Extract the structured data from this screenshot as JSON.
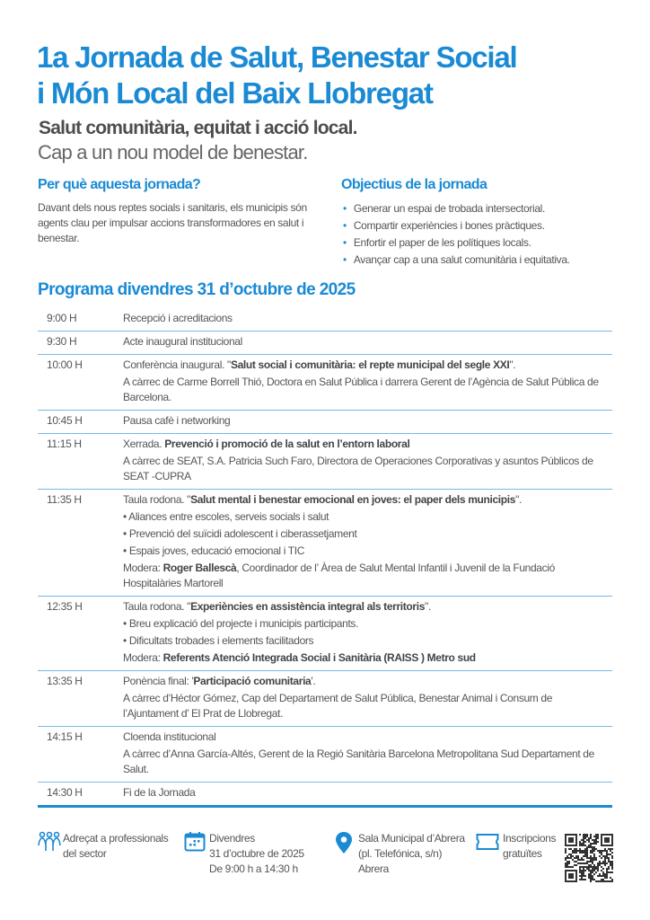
{
  "header": {
    "title_line1": "1a Jornada de Salut, Benestar Social",
    "title_line2": "i Món Local del Baix Llobregat",
    "subtitle": "Salut comunitària, equitat i acció local.",
    "tagline": "Cap a un nou model de benestar."
  },
  "why": {
    "heading": "Per què aquesta jornada?",
    "text": "Davant dels nous reptes socials i sanitaris, els municipis són agents clau per impulsar accions transformadores en salut i benestar."
  },
  "objectives": {
    "heading": "Objectius de la jornada",
    "items": [
      "Generar un espai de trobada intersectorial.",
      "Compartir experiències i bones pràctiques.",
      "Enfortir el paper de les polítiques locals.",
      "Avançar cap a una salut comunitària i equitativa."
    ]
  },
  "program": {
    "heading": "Programa divendres 31 d’octubre de 2025",
    "rows": [
      {
        "time": "9:00 H",
        "lines": [
          [
            {
              "t": "Recepció i acreditacions"
            }
          ]
        ]
      },
      {
        "time": "9:30 H",
        "lines": [
          [
            {
              "t": "Acte inaugural institucional"
            }
          ]
        ]
      },
      {
        "time": "10:00 H",
        "lines": [
          [
            {
              "t": "Conferència inaugural. \""
            },
            {
              "t": "Salut social i comunitària: el repte municipal del segle XXI",
              "b": true
            },
            {
              "t": "\"."
            }
          ],
          [
            {
              "t": "A càrrec de Carme Borrell Thió, Doctora en Salut Pública i darrera Gerent de l’Agència de Salut Pública de Barcelona."
            }
          ]
        ]
      },
      {
        "time": "10:45 H",
        "lines": [
          [
            {
              "t": "Pausa cafè i networking"
            }
          ]
        ]
      },
      {
        "time": "11:15 H",
        "lines": [
          [
            {
              "t": "Xerrada. "
            },
            {
              "t": "Prevenció i promoció de la salut en l’entorn laboral",
              "b": true
            }
          ],
          [
            {
              "t": "A càrrec de SEAT, S.A. Patricia Such Faro, Directora de Operaciones Corporativas y asuntos Públicos de SEAT -CUPRA"
            }
          ]
        ]
      },
      {
        "time": "11:35 H",
        "lines": [
          [
            {
              "t": "Taula rodona. \""
            },
            {
              "t": "Salut mental i benestar emocional en joves: el paper dels municipis",
              "b": true
            },
            {
              "t": "\"."
            }
          ],
          [
            {
              "t": "• Aliances entre escoles, serveis socials i salut"
            }
          ],
          [
            {
              "t": "• Prevenció del suïcidi adolescent i ciberassetjament"
            }
          ],
          [
            {
              "t": "• Espais joves, educació emocional i TIC"
            }
          ],
          [
            {
              "t": "Modera: "
            },
            {
              "t": "Roger Ballescà",
              "b": true
            },
            {
              "t": ", Coordinador de l’ Àrea de Salut Mental Infantil i Juvenil de la Fundació Hospitalàries Martorell"
            }
          ]
        ]
      },
      {
        "time": "12:35 H",
        "lines": [
          [
            {
              "t": "Taula rodona. \""
            },
            {
              "t": "Experiències en assistència integral als territoris",
              "b": true
            },
            {
              "t": "\"."
            }
          ],
          [
            {
              "t": "• Breu explicació del projecte i municipis participants."
            }
          ],
          [
            {
              "t": "• Dificultats trobades i elements facilitadors"
            }
          ],
          [
            {
              "t": "Modera: "
            },
            {
              "t": "Referents Atenció Integrada Social i Sanitària (RAISS ) Metro sud",
              "b": true
            }
          ]
        ]
      },
      {
        "time": "13:35 H",
        "lines": [
          [
            {
              "t": "Ponència final:  '"
            },
            {
              "t": "Participació comunitaria",
              "b": true
            },
            {
              "t": "'."
            }
          ],
          [
            {
              "t": "A càrrec d’Héctor Gómez,  Cap del Departament de Salut Pública, Benestar Animal i Consum de l’Ajuntament d’ El Prat de Llobregat."
            }
          ]
        ]
      },
      {
        "time": "14:15 H",
        "lines": [
          [
            {
              "t": "Cloenda institucional"
            }
          ],
          [
            {
              "t": "A càrrec d’Anna García-Altés, Gerent de la Regió Sanitària Barcelona Metropolitana Sud Departament de Salut."
            }
          ]
        ]
      },
      {
        "time": "14:30 H",
        "lines": [
          [
            {
              "t": "Fi de la Jornada"
            }
          ]
        ]
      }
    ]
  },
  "footer": {
    "audience": {
      "icon": "people-icon",
      "line1": "Adreçat  a professionals",
      "line2": "del sector"
    },
    "date": {
      "icon": "calendar-icon",
      "line1": "Divendres",
      "line2": "31 d’octubre de 2025",
      "line3": "De 9:00 h a 14:30 h"
    },
    "place": {
      "icon": "location-pin-icon",
      "line1": "Sala Municipal d’Abrera",
      "line2": "(pl. Telefónica, s/n)",
      "line3": "Abrera"
    },
    "registration": {
      "icon": "ticket-icon",
      "line1": "Inscripcions",
      "line2": "gratuïtes"
    },
    "qr": {
      "icon": "qr-code-icon"
    }
  },
  "colors": {
    "accent": "#1a8ad4",
    "text": "#555555",
    "divider": "#7bb8e3"
  }
}
